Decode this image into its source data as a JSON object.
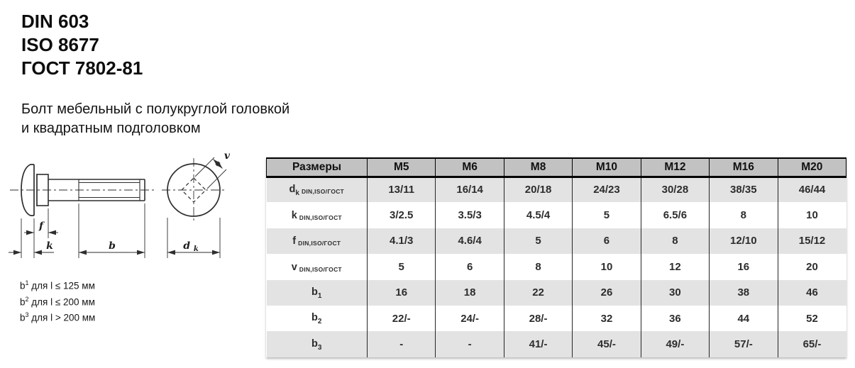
{
  "standards": [
    "DIN 603",
    "ISO 8677",
    "ГОСТ 7802-81"
  ],
  "description": [
    "Болт мебельный с полукруглой головкой",
    "и квадратным подголовком"
  ],
  "drawing": {
    "labels": {
      "f": "f",
      "k": "k",
      "b": "b",
      "v": "v",
      "dk_main": "d",
      "dk_sub": "k"
    }
  },
  "table": {
    "header": {
      "first": "Размеры",
      "sizes": [
        "M5",
        "M6",
        "M8",
        "M10",
        "M12",
        "M16",
        "M20"
      ]
    },
    "rows": [
      {
        "symbol": "d",
        "sub": "k",
        "suffix": "DIN,ISO/ГОСТ",
        "values": [
          "13/11",
          "16/14",
          "20/18",
          "24/23",
          "30/28",
          "38/35",
          "46/44"
        ]
      },
      {
        "symbol": "k",
        "sub": "",
        "suffix": "DIN,ISO/ГОСТ",
        "values": [
          "3/2.5",
          "3.5/3",
          "4.5/4",
          "5",
          "6.5/6",
          "8",
          "10"
        ]
      },
      {
        "symbol": "f",
        "sub": "",
        "suffix": "DIN,ISO/ГОСТ",
        "values": [
          "4.1/3",
          "4.6/4",
          "5",
          "6",
          "8",
          "12/10",
          "15/12"
        ]
      },
      {
        "symbol": "v",
        "sub": "",
        "suffix": "DIN,ISO/ГОСТ",
        "values": [
          "5",
          "6",
          "8",
          "10",
          "12",
          "16",
          "20"
        ]
      },
      {
        "symbol": "b",
        "sub": "1",
        "suffix": "",
        "values": [
          "16",
          "18",
          "22",
          "26",
          "30",
          "38",
          "46"
        ]
      },
      {
        "symbol": "b",
        "sub": "2",
        "suffix": "",
        "values": [
          "22/-",
          "24/-",
          "28/-",
          "32",
          "36",
          "44",
          "52"
        ]
      },
      {
        "symbol": "b",
        "sub": "3",
        "suffix": "",
        "values": [
          "-",
          "-",
          "41/-",
          "45/-",
          "49/-",
          "57/-",
          "65/-"
        ]
      }
    ]
  },
  "footnotes": [
    {
      "symbol": "b",
      "sup": "1",
      "text": "для l ≤ 125 мм"
    },
    {
      "symbol": "b",
      "sup": "2",
      "text": "для l ≤ 200 мм"
    },
    {
      "symbol": "b",
      "sup": "3",
      "text": "для l > 200 мм"
    }
  ],
  "colors": {
    "header_bg": "#c2c2c2",
    "row_alt_bg": "#e3e3e3",
    "row_bg": "#ffffff",
    "table_border": "#000000",
    "drawing_line": "#2e2e2e"
  }
}
